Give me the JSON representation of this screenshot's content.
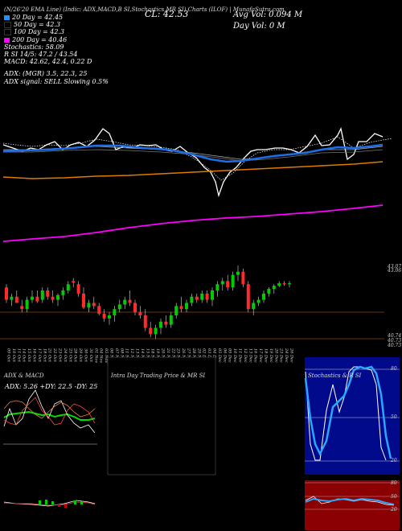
{
  "header": {
    "title_line": "(N/26'20 EMA Line) (Indic: ADX,MACD,B SI,Stochastics,MR SI) Charts (ILOF) | MunafaSutra.com",
    "close_label": "CL: 42.53",
    "avg_vol": "Avg Vol: 0.094 M",
    "day_vol": "Day Vol: 0 M"
  },
  "legend": [
    {
      "text": "20 Day = 42.45",
      "color": "#1e90ff"
    },
    {
      "text": "50 Day = 42.3",
      "color": "#000000"
    },
    {
      "text": "100 Day = 42.3",
      "color": "#000000"
    },
    {
      "text": "200 Day = 40.46",
      "color": "#ff00ff"
    }
  ],
  "indicators": {
    "stochastics": "Stochastics: 58.09",
    "rsi": "R SI 14/5: 47.2 / 43.54",
    "macd": "MACD: 42.62, 42.4, 0.22 D",
    "adx": "ADX: (MGR) 3.5, 22.3, 25",
    "adx_signal": "ADX signal: SELL Slowing 0.5%"
  },
  "price_labels": {
    "top1": "43.07",
    "top2": "43.06",
    "low1": "40.74",
    "low2": "40.73",
    "low3": "40.73"
  },
  "panels": {
    "adx_title": "ADX & MACD",
    "adx_reading": "ADX: 5.26 +DY: 22.5 -DY: 25",
    "intraday_title": "Intra Day Trading Price & MR SI",
    "stoch_title": "Stochastics & R SI",
    "stoch_top_labels": [
      "80",
      "50",
      "20"
    ],
    "rsi_labels": [
      "80",
      "50",
      "20"
    ]
  },
  "chart_data": {
    "type": "candlestick",
    "dates": [
      "09 Oct",
      "10 Oct",
      "11 Oct",
      "14 Oct",
      "15 Oct",
      "16 Oct",
      "17 Oct",
      "18 Oct",
      "21 Oct",
      "22 Oct",
      "23 Oct",
      "24 Oct",
      "25 Oct",
      "28 Oct",
      "29 Oct",
      "30 Oct",
      "31 Oct",
      "01 Nov",
      "04 Nov",
      "05 Nov",
      "06 Nov",
      "07 Nov",
      "08 Nov",
      "11 Nov",
      "12 Nov",
      "13 Nov",
      "14 Nov",
      "15 Nov",
      "18 Nov",
      "19 Nov",
      "20 Nov",
      "21 Nov",
      "22 Nov",
      "25 Nov",
      "26 Nov",
      "27 Nov",
      "28 Nov",
      "29 Nov",
      "02 Dec",
      "03 Dec",
      "04 Dec",
      "05 Dec",
      "06 Dec",
      "09 Dec",
      "10 Dec",
      "11 Dec",
      "12 Dec",
      "13 Dec",
      "16 Dec",
      "17 Dec",
      "18 Dec",
      "19 Dec",
      "20 Dec",
      "23 Dec",
      "24 Dec",
      "26 Dec"
    ],
    "ohlc": [
      [
        42.4,
        42.5,
        41.9,
        42.0
      ],
      [
        42.0,
        42.2,
        41.8,
        42.1
      ],
      [
        42.1,
        42.3,
        41.9,
        41.9
      ],
      [
        41.8,
        42.0,
        41.6,
        41.7
      ],
      [
        41.7,
        42.1,
        41.6,
        42.0
      ],
      [
        42.0,
        42.3,
        41.9,
        42.1
      ],
      [
        42.1,
        42.3,
        41.9,
        41.95
      ],
      [
        42.0,
        42.4,
        41.9,
        42.3
      ],
      [
        42.3,
        42.4,
        42.0,
        42.1
      ],
      [
        42.1,
        42.3,
        41.9,
        42.0
      ],
      [
        42.0,
        42.2,
        41.8,
        42.15
      ],
      [
        42.15,
        42.4,
        42.0,
        42.3
      ],
      [
        42.3,
        42.6,
        42.2,
        42.5
      ],
      [
        42.6,
        42.7,
        42.4,
        42.55
      ],
      [
        42.5,
        42.6,
        42.1,
        42.2
      ],
      [
        42.2,
        42.4,
        41.7,
        41.75
      ],
      [
        41.75,
        42.0,
        41.6,
        41.9
      ],
      [
        41.9,
        42.1,
        41.7,
        41.8
      ],
      [
        41.8,
        41.9,
        41.5,
        41.55
      ],
      [
        41.55,
        41.7,
        41.3,
        41.4
      ],
      [
        41.4,
        41.6,
        41.2,
        41.5
      ],
      [
        41.5,
        41.8,
        41.3,
        41.7
      ],
      [
        41.7,
        42.0,
        41.6,
        41.85
      ],
      [
        41.85,
        42.1,
        41.7,
        42.0
      ],
      [
        42.0,
        42.3,
        41.8,
        41.9
      ],
      [
        41.9,
        42.0,
        41.5,
        41.6
      ],
      [
        41.6,
        41.8,
        41.4,
        41.5
      ],
      [
        41.5,
        41.7,
        41.0,
        41.1
      ],
      [
        41.1,
        41.3,
        40.8,
        40.9
      ],
      [
        40.9,
        41.2,
        40.75,
        41.1
      ],
      [
        41.1,
        41.4,
        40.9,
        41.3
      ],
      [
        41.3,
        41.5,
        41.1,
        41.2
      ],
      [
        41.2,
        41.6,
        41.1,
        41.5
      ],
      [
        41.5,
        41.9,
        41.4,
        41.8
      ],
      [
        41.8,
        42.1,
        41.6,
        41.7
      ],
      [
        41.7,
        42.0,
        41.6,
        41.9
      ],
      [
        41.9,
        42.2,
        41.8,
        42.1
      ],
      [
        42.1,
        42.2,
        41.9,
        42.0
      ],
      [
        42.0,
        42.3,
        41.9,
        42.2
      ],
      [
        42.2,
        42.3,
        41.9,
        42.0
      ],
      [
        42.0,
        42.4,
        41.8,
        42.3
      ],
      [
        42.3,
        42.6,
        42.1,
        42.5
      ],
      [
        42.5,
        42.7,
        42.3,
        42.6
      ],
      [
        42.6,
        42.8,
        42.3,
        42.4
      ],
      [
        42.4,
        42.9,
        42.3,
        42.8
      ],
      [
        42.8,
        43.1,
        42.6,
        42.9
      ],
      [
        42.9,
        43.0,
        42.4,
        42.5
      ],
      [
        42.5,
        42.6,
        41.6,
        41.7
      ],
      [
        41.7,
        42.0,
        41.5,
        41.9
      ],
      [
        41.9,
        42.1,
        41.8,
        42.0
      ],
      [
        42.0,
        42.3,
        41.9,
        42.2
      ],
      [
        42.2,
        42.4,
        42.1,
        42.35
      ],
      [
        42.35,
        42.5,
        42.2,
        42.45
      ],
      [
        42.45,
        42.6,
        42.4,
        42.53
      ],
      [
        42.53,
        42.6,
        42.45,
        42.5
      ],
      [
        42.5,
        42.6,
        42.4,
        42.53
      ]
    ],
    "ylim": [
      40.7,
      43.1
    ]
  }
}
